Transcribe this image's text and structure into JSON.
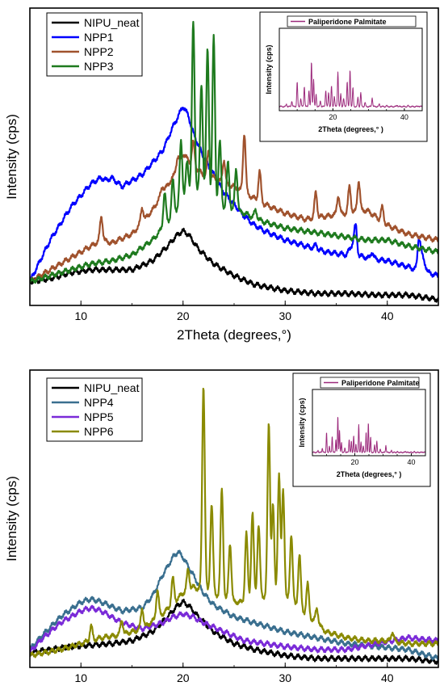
{
  "chart_data": [
    {
      "type": "line",
      "panel": "top",
      "title": "",
      "xlabel": "2Theta (degrees,°)",
      "ylabel": "Intensity (cps)",
      "xlim": [
        5,
        45
      ],
      "ylim": [
        0,
        100
      ],
      "xticks": [
        10,
        20,
        30,
        40
      ],
      "grid": false,
      "legend_placement": "top-left",
      "series": [
        {
          "name": "NIPU_neat",
          "color": "#000000",
          "x": [
            5,
            7,
            9,
            11,
            13,
            15,
            17,
            18.5,
            19.5,
            20,
            20.5,
            21.5,
            23,
            25,
            27,
            30,
            33,
            36,
            39,
            42,
            45
          ],
          "y": [
            8,
            9,
            11,
            12,
            12,
            12,
            15,
            20,
            24,
            25,
            24,
            19,
            14,
            10,
            7,
            5,
            4,
            4,
            3.5,
            3.5,
            2
          ]
        },
        {
          "name": "NPP1",
          "color": "#0000ff",
          "x": [
            5,
            7,
            9,
            11,
            12,
            12.5,
            13,
            14,
            16,
            18,
            19,
            20,
            20.5,
            21,
            22,
            23,
            24,
            25,
            26,
            27,
            28,
            30,
            32,
            34,
            36,
            36.8,
            37,
            38,
            40,
            42,
            43,
            43.2,
            44,
            45
          ],
          "y": [
            8,
            22,
            33,
            41,
            43,
            42,
            43,
            40,
            44,
            52,
            60,
            67,
            64,
            58,
            50,
            44,
            38,
            34,
            30,
            27,
            25,
            22,
            20,
            18,
            17,
            22,
            17,
            16,
            15,
            13,
            12,
            19,
            11,
            10
          ],
          "peaks": [
            [
              33,
              20.5
            ],
            [
              36.9,
              27
            ],
            [
              38.5,
              18
            ],
            [
              43.1,
              23
            ]
          ]
        },
        {
          "name": "NPP2",
          "color": "#a0522d",
          "x": [
            5,
            8,
            11,
            12,
            13,
            15,
            17,
            18,
            19,
            20,
            21,
            22,
            23,
            24,
            25,
            26,
            27,
            28,
            30,
            32,
            34,
            36,
            38,
            40,
            42,
            45
          ],
          "y": [
            8,
            14,
            20,
            22,
            21,
            24,
            32,
            38,
            43,
            51,
            47,
            44,
            43,
            41,
            40,
            38,
            36,
            34,
            31,
            29,
            30,
            31,
            32,
            27,
            24,
            22
          ],
          "peaks": [
            [
              12,
              30
            ],
            [
              16,
              33
            ],
            [
              18,
              40
            ],
            [
              19.5,
              50
            ],
            [
              21,
              55
            ],
            [
              22.5,
              52
            ],
            [
              24,
              49
            ],
            [
              26,
              58
            ],
            [
              27.5,
              45
            ],
            [
              33,
              38
            ],
            [
              35.2,
              37
            ],
            [
              36.3,
              40
            ],
            [
              37.2,
              42
            ],
            [
              39.5,
              33
            ]
          ]
        },
        {
          "name": "NPP3",
          "color": "#1e7a1e",
          "x": [
            5,
            8,
            11,
            13,
            15,
            17,
            18,
            19,
            20,
            21,
            22,
            23,
            24,
            25,
            26,
            28,
            30,
            32,
            34,
            36,
            38,
            40,
            42,
            45
          ],
          "y": [
            8,
            11,
            14,
            15,
            17,
            22,
            26,
            30,
            36,
            40,
            38,
            34,
            33,
            32,
            31,
            28,
            26,
            25,
            24,
            23,
            22,
            22,
            20,
            18
          ],
          "peaks": [
            [
              18.2,
              38
            ],
            [
              19,
              42
            ],
            [
              19.8,
              55
            ],
            [
              20.4,
              48
            ],
            [
              21,
              95
            ],
            [
              21.8,
              74
            ],
            [
              22.4,
              86
            ],
            [
              23,
              90
            ],
            [
              23.6,
              55
            ],
            [
              24.4,
              48
            ],
            [
              25.2,
              46
            ],
            [
              27.1,
              32
            ]
          ]
        }
      ]
    },
    {
      "type": "line",
      "panel": "top-inset",
      "title": "",
      "xlabel": "2Theta (degrees,° )",
      "ylabel": "Intensity (cps)",
      "xlim": [
        5,
        45
      ],
      "ylim": [
        0,
        100
      ],
      "xticks": [
        20,
        40
      ],
      "legend_placement": "top",
      "series": [
        {
          "name": "Paliperidone Palmitate",
          "color": "#9c2a7c",
          "x": [
            5,
            45
          ],
          "y": [
            5,
            5
          ],
          "peaks": [
            [
              7,
              8
            ],
            [
              8.5,
              12
            ],
            [
              10,
              35
            ],
            [
              11,
              15
            ],
            [
              12,
              30
            ],
            [
              13.3,
              25
            ],
            [
              14,
              60
            ],
            [
              14.6,
              38
            ],
            [
              15.3,
              20
            ],
            [
              16.5,
              12
            ],
            [
              18,
              25
            ],
            [
              18.8,
              22
            ],
            [
              19.6,
              30
            ],
            [
              20.4,
              18
            ],
            [
              21.4,
              48
            ],
            [
              22.2,
              20
            ],
            [
              23,
              15
            ],
            [
              24,
              36
            ],
            [
              24.8,
              50
            ],
            [
              25.6,
              28
            ],
            [
              27,
              16
            ],
            [
              27.8,
              22
            ],
            [
              29,
              10
            ],
            [
              31,
              16
            ],
            [
              33,
              8
            ],
            [
              35,
              6
            ],
            [
              38,
              7
            ],
            [
              41,
              6
            ],
            [
              44,
              6
            ]
          ]
        }
      ]
    },
    {
      "type": "line",
      "panel": "bottom",
      "title": "",
      "xlabel": "2Theta (degrees, ° )",
      "ylabel": "Intensity (cps)",
      "xlim": [
        5,
        45
      ],
      "ylim": [
        0,
        100
      ],
      "xticks": [
        10,
        20,
        30,
        40
      ],
      "grid": false,
      "legend_placement": "top-left",
      "series": [
        {
          "name": "NIPU_neat",
          "color": "#000000",
          "x": [
            5,
            7,
            9,
            11,
            13,
            15,
            17,
            18.5,
            19.5,
            20,
            20.5,
            21.5,
            23,
            25,
            27,
            30,
            33,
            36,
            39,
            42,
            45
          ],
          "y": [
            5,
            6,
            7,
            7.5,
            8,
            9,
            12,
            17,
            21,
            22,
            21,
            17,
            12,
            8,
            6,
            4,
            3,
            3,
            3,
            3,
            2
          ]
        },
        {
          "name": "NPP4",
          "color": "#3a6f8f",
          "x": [
            5,
            6,
            8,
            10,
            11,
            12,
            14,
            16,
            17,
            18,
            19,
            19.5,
            20,
            21,
            22,
            23,
            24,
            25,
            27,
            30,
            33,
            36,
            39,
            42,
            45
          ],
          "y": [
            6,
            10,
            17,
            22,
            23,
            22,
            19,
            20,
            24,
            31,
            37,
            39,
            37,
            31,
            25,
            21,
            19,
            17,
            15,
            12,
            10,
            8,
            7,
            6,
            3
          ]
        },
        {
          "name": "NPP5",
          "color": "#7a2ad8",
          "x": [
            5,
            6,
            8,
            10,
            11,
            12,
            14,
            16,
            18,
            19,
            20,
            21,
            22,
            24,
            26,
            28,
            30,
            33,
            36,
            39,
            42,
            45
          ],
          "y": [
            5,
            9,
            15,
            19,
            20,
            19,
            15,
            13,
            15,
            17,
            18,
            17,
            15,
            12,
            9,
            8,
            7,
            6,
            6,
            8,
            10,
            9
          ]
        },
        {
          "name": "NPP6",
          "color": "#8a8a00",
          "x": [
            5,
            8,
            10,
            12,
            14,
            16,
            18,
            20,
            21,
            22,
            23,
            24,
            25,
            26,
            27,
            28,
            29,
            30,
            31,
            32,
            33,
            34,
            36,
            38,
            40,
            42,
            45
          ],
          "y": [
            4,
            6,
            8,
            10,
            11,
            13,
            18,
            25,
            27,
            26,
            25,
            23,
            22,
            22,
            23,
            24,
            24,
            23,
            21,
            18,
            15,
            12,
            10,
            9,
            9,
            8,
            8
          ],
          "peaks": [
            [
              11,
              14
            ],
            [
              14,
              16
            ],
            [
              16,
              20
            ],
            [
              17.5,
              26
            ],
            [
              19,
              30
            ],
            [
              20.5,
              33
            ],
            [
              22,
              95
            ],
            [
              22.8,
              55
            ],
            [
              23.8,
              60
            ],
            [
              24.6,
              42
            ],
            [
              26.2,
              45
            ],
            [
              26.8,
              52
            ],
            [
              27.4,
              48
            ],
            [
              28.4,
              82
            ],
            [
              28.8,
              55
            ],
            [
              29.4,
              65
            ],
            [
              29.8,
              60
            ],
            [
              30.6,
              45
            ],
            [
              31.4,
              38
            ],
            [
              32.2,
              28
            ],
            [
              33.1,
              20
            ],
            [
              40.5,
              12
            ]
          ]
        }
      ]
    },
    {
      "type": "line",
      "panel": "bottom-inset",
      "title": "",
      "xlabel": "2Theta (degrees,° )",
      "ylabel": "Intensity (cps)",
      "xlim": [
        5,
        45
      ],
      "ylim": [
        0,
        100
      ],
      "xticks": [
        20,
        40
      ],
      "legend_placement": "top",
      "series": [
        {
          "name": "Paliperidone Palmitate",
          "color": "#9c2a7c",
          "x": [
            5,
            45
          ],
          "y": [
            5,
            5
          ],
          "peaks": [
            [
              7,
              8
            ],
            [
              8.5,
              12
            ],
            [
              10,
              35
            ],
            [
              11,
              15
            ],
            [
              12,
              30
            ],
            [
              13.3,
              25
            ],
            [
              14,
              60
            ],
            [
              14.6,
              38
            ],
            [
              15.3,
              20
            ],
            [
              16.5,
              12
            ],
            [
              18,
              25
            ],
            [
              18.8,
              22
            ],
            [
              19.6,
              30
            ],
            [
              20.4,
              18
            ],
            [
              21.4,
              48
            ],
            [
              22.2,
              20
            ],
            [
              23,
              15
            ],
            [
              24,
              36
            ],
            [
              24.8,
              50
            ],
            [
              25.6,
              28
            ],
            [
              27,
              16
            ],
            [
              27.8,
              22
            ],
            [
              29,
              10
            ],
            [
              31,
              16
            ],
            [
              33,
              8
            ],
            [
              35,
              6
            ],
            [
              38,
              7
            ],
            [
              41,
              6
            ],
            [
              44,
              6
            ]
          ]
        }
      ]
    }
  ]
}
